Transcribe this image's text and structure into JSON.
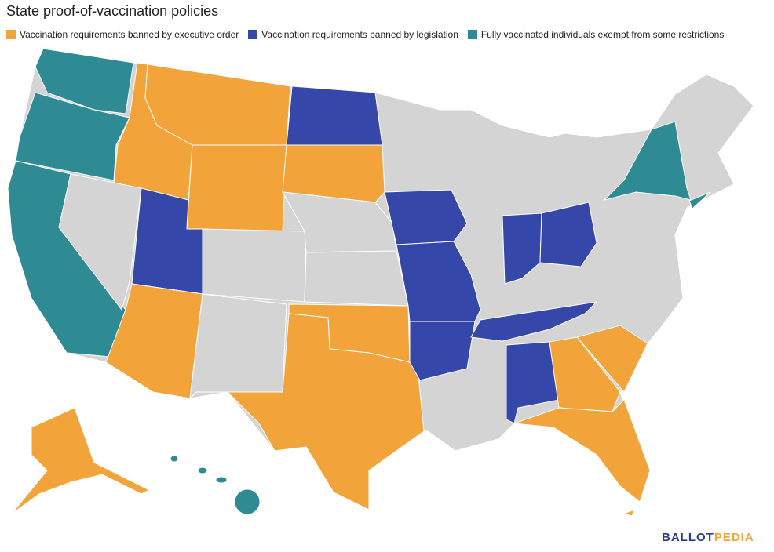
{
  "title": "State proof-of-vaccination policies",
  "legend": [
    {
      "label": "Vaccination requirements banned by executive order",
      "color": "#f2a33a"
    },
    {
      "label": "Vaccination requirements banned by legislation",
      "color": "#3547a8"
    },
    {
      "label": "Fully vaccinated individuals exempt from some restrictions",
      "color": "#2e8b94"
    }
  ],
  "logo": {
    "part1": "BALLOT",
    "part2": "PEDIA"
  }
}
